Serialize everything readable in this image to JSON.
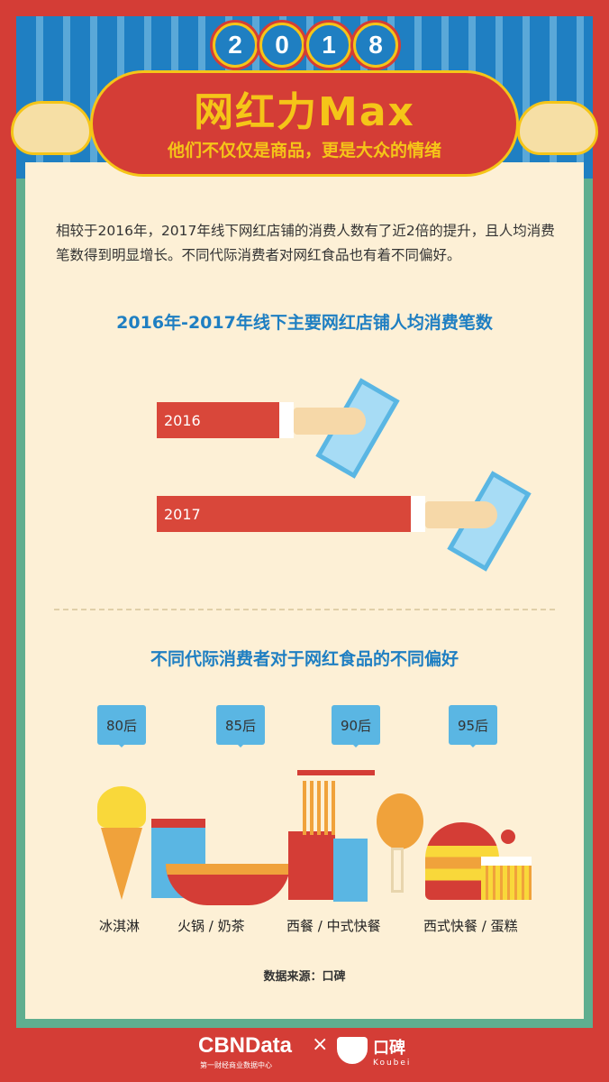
{
  "header": {
    "year_digits": [
      "2",
      "0",
      "1",
      "8"
    ],
    "title": "网红力Max",
    "subtitle": "他们不仅仅是商品，更是大众的情绪"
  },
  "intro": "相较于2016年，2017年线下网红店铺的消费人数有了近2倍的提升，且人均消费笔数得到明显增长。不同代际消费者对网红食品也有着不同偏好。",
  "chart": {
    "title": "2016年-2017年线下主要网红店铺人均消费笔数",
    "bars": [
      {
        "label": "2016"
      },
      {
        "label": "2017"
      }
    ],
    "bar_color": "#d9473a"
  },
  "preferences": {
    "title": "不同代际消费者对于网红食品的不同偏好",
    "generations": [
      {
        "tag": "80后",
        "food": "冰淇淋"
      },
      {
        "tag": "85后",
        "food": "火锅 / 奶茶"
      },
      {
        "tag": "90后",
        "food": "西餐 / 中式快餐"
      },
      {
        "tag": "95后",
        "food": "西式快餐 / 蛋糕"
      }
    ]
  },
  "source": "数据来源：口碑",
  "footer": {
    "brand1": "CBNData",
    "brand1_sub": "第一财经商业数据中心",
    "times": "×",
    "brand2": "口碑",
    "brand2_sub": "Koubei"
  },
  "colors": {
    "red": "#d43d36",
    "blue": "#1f7fc2",
    "yellow": "#f5c518",
    "cream": "#fdf0d6",
    "green": "#5fae8f"
  }
}
